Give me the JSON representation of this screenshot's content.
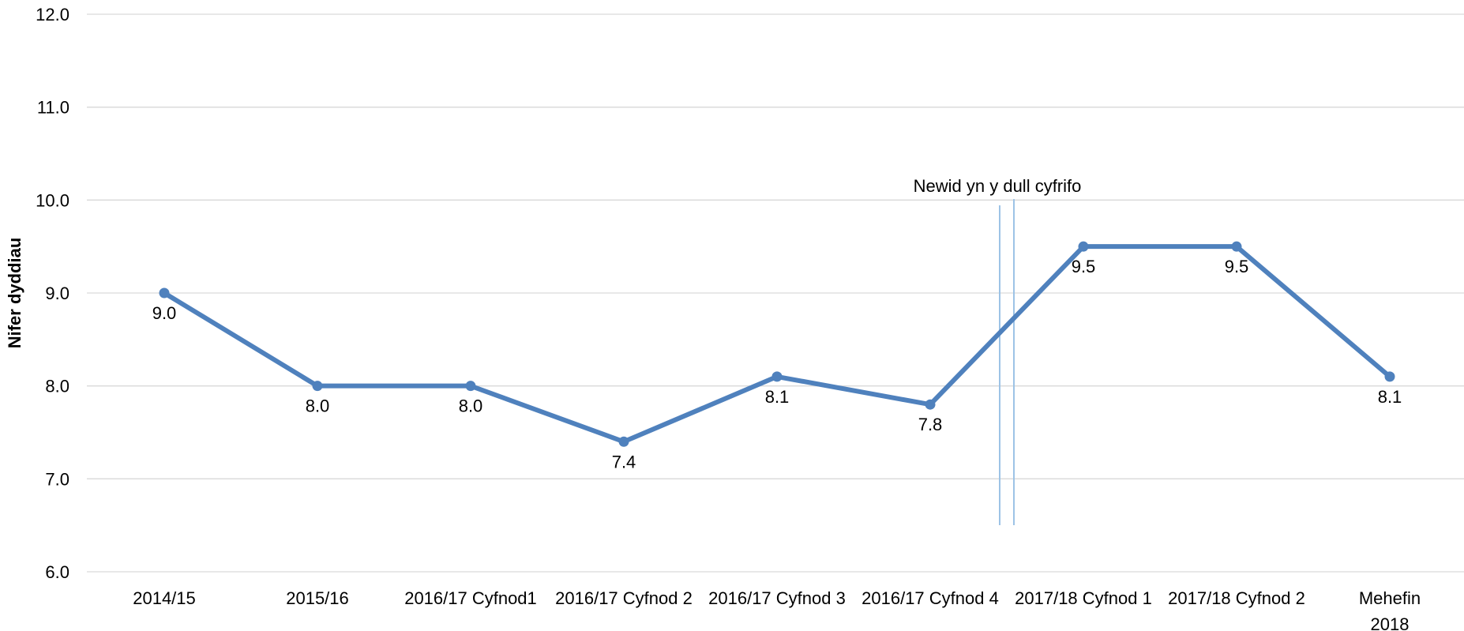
{
  "chart_data": {
    "type": "line",
    "categories": [
      [
        "2014/15"
      ],
      [
        "2015/16"
      ],
      [
        "2016/17 Cyfnod1"
      ],
      [
        "2016/17 Cyfnod 2"
      ],
      [
        "2016/17 Cyfnod 3"
      ],
      [
        "2016/17 Cyfnod 4"
      ],
      [
        "2017/18 Cyfnod 1"
      ],
      [
        "2017/18 Cyfnod 2"
      ],
      [
        "Mehefin",
        "2018"
      ]
    ],
    "series": [
      {
        "values": [
          9.0,
          8.0,
          8.0,
          7.4,
          8.1,
          7.8,
          9.5,
          9.5,
          8.1
        ],
        "color": "#4F81BD"
      }
    ],
    "data_labels": [
      "9.0",
      "8.0",
      "8.0",
      "7.4",
      "8.1",
      "7.8",
      "9.5",
      "9.5",
      "8.1"
    ],
    "xlabel": "",
    "ylabel": "Nifer dyddiau",
    "ylim": [
      6.0,
      12.0
    ],
    "y_ticks": [
      "6.0",
      "7.0",
      "8.0",
      "9.0",
      "10.0",
      "11.0",
      "12.0"
    ],
    "grid": true,
    "gridline_color": "#D9D9D9",
    "annotation": {
      "text": "Newid yn y dull cyfrifo",
      "between_categories": [
        "2016/17 Cyfnod 4",
        "2017/18 Cyfnod 1"
      ],
      "marker": "double vertical line",
      "color": "#9DC3E6"
    }
  }
}
